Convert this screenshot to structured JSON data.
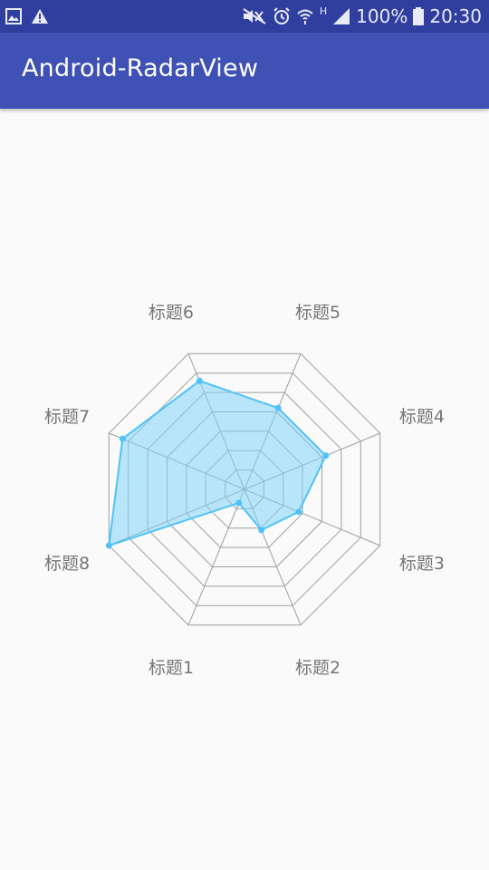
{
  "status_bar": {
    "battery_percent": "100%",
    "time": "20:30",
    "network_type": "H",
    "icons_left": [
      "image-icon",
      "warning-icon"
    ],
    "icons_right": [
      "mute-icon",
      "alarm-icon",
      "wifi-icon",
      "signal-icon",
      "battery-icon"
    ]
  },
  "app_bar": {
    "title": "Android-RadarView",
    "background_color": "#3f51b5",
    "status_color": "#303f9f"
  },
  "chart_data": {
    "type": "radar",
    "axes": [
      "标题1",
      "标题2",
      "标题3",
      "标题4",
      "标题5",
      "标题6",
      "标题7",
      "标题8"
    ],
    "values": [
      10,
      30,
      40,
      60,
      60,
      80,
      90,
      100
    ],
    "max": 100,
    "rings": 7,
    "fill_color": "#81d4fa",
    "stroke_color": "#4fc3f7",
    "grid_color": "#9e9e9e"
  }
}
